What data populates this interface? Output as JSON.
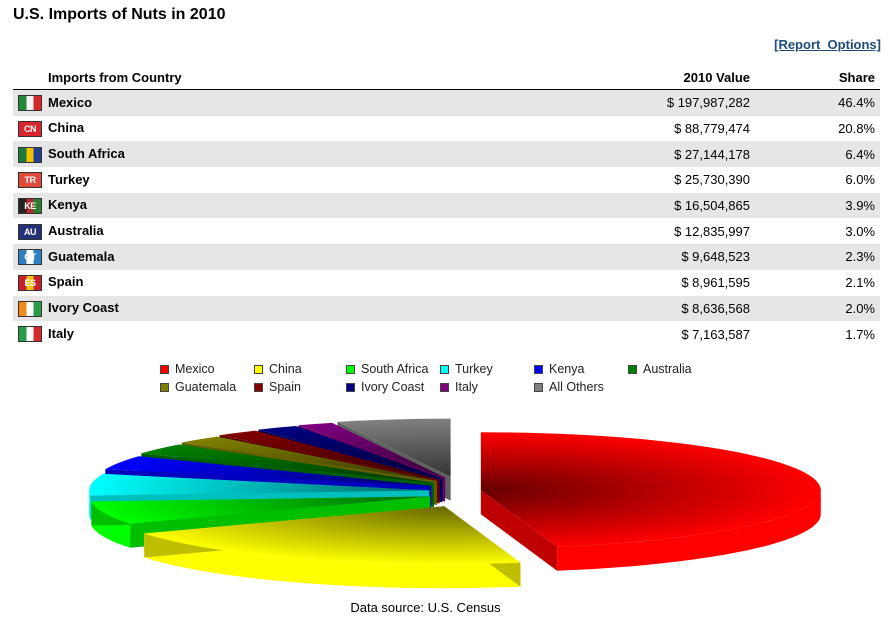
{
  "page": {
    "title": "U.S. Imports of Nuts in 2010",
    "report_link": "[Report_Options]",
    "source": "Data source: U.S. Census"
  },
  "table": {
    "headers": {
      "country": "Imports from Country",
      "value": "2010 Value",
      "share": "Share"
    },
    "rows": [
      {
        "country": "Mexico",
        "value": "$ 197,987,282",
        "share": "46.4%",
        "flag": {
          "colors": [
            "#1f8a3c",
            "#f4f4f4",
            "#d62a2a"
          ],
          "code": ""
        }
      },
      {
        "country": "China",
        "value": "$ 88,779,474",
        "share": "20.8%",
        "flag": {
          "colors": [
            "#d9262c"
          ],
          "code": "CN"
        }
      },
      {
        "country": "South Africa",
        "value": "$ 27,144,178",
        "share": "6.4%",
        "flag": {
          "colors": [
            "#1d7a3a",
            "#f2c300",
            "#1f3f8f"
          ],
          "code": ""
        }
      },
      {
        "country": "Turkey",
        "value": "$ 25,730,390",
        "share": "6.0%",
        "flag": {
          "colors": [
            "#e04a3c"
          ],
          "code": "TR"
        }
      },
      {
        "country": "Kenya",
        "value": "$ 16,504,865",
        "share": "3.9%",
        "flag": {
          "colors": [
            "#222222",
            "#b5262d",
            "#2e7d32"
          ],
          "code": "KE"
        }
      },
      {
        "country": "Australia",
        "value": "$ 12,835,997",
        "share": "3.0%",
        "flag": {
          "colors": [
            "#23307a"
          ],
          "code": "AU"
        }
      },
      {
        "country": "Guatemala",
        "value": "$ 9,648,523",
        "share": "2.3%",
        "flag": {
          "colors": [
            "#2f7fc1",
            "#ffffff",
            "#2f7fc1"
          ],
          "code": "GT"
        }
      },
      {
        "country": "Spain",
        "value": "$ 8,961,595",
        "share": "2.1%",
        "flag": {
          "colors": [
            "#c8202b",
            "#f4c20d",
            "#c8202b"
          ],
          "code": "ES"
        }
      },
      {
        "country": "Ivory Coast",
        "value": "$ 8,636,568",
        "share": "2.0%",
        "flag": {
          "colors": [
            "#f08a1c",
            "#ffffff",
            "#2a9c48"
          ],
          "code": ""
        }
      },
      {
        "country": "Italy",
        "value": "$ 7,163,587",
        "share": "1.7%",
        "flag": {
          "colors": [
            "#2a9c48",
            "#ffffff",
            "#d62a2a"
          ],
          "code": "IT"
        }
      }
    ]
  },
  "chart_data": {
    "type": "pie",
    "style": "3d exploded",
    "legend_position": "top",
    "labels": [
      "Mexico",
      "China",
      "South Africa",
      "Turkey",
      "Kenya",
      "Australia",
      "Guatemala",
      "Spain",
      "Ivory Coast",
      "Italy",
      "All Others"
    ],
    "values": [
      46.4,
      20.8,
      6.4,
      6.0,
      3.9,
      3.0,
      2.3,
      2.1,
      2.0,
      1.7,
      5.4
    ],
    "colors": [
      "#ff0000",
      "#ffff00",
      "#00ff00",
      "#00ffff",
      "#0000ff",
      "#008000",
      "#808000",
      "#800000",
      "#000080",
      "#800080",
      "#808080"
    ]
  }
}
